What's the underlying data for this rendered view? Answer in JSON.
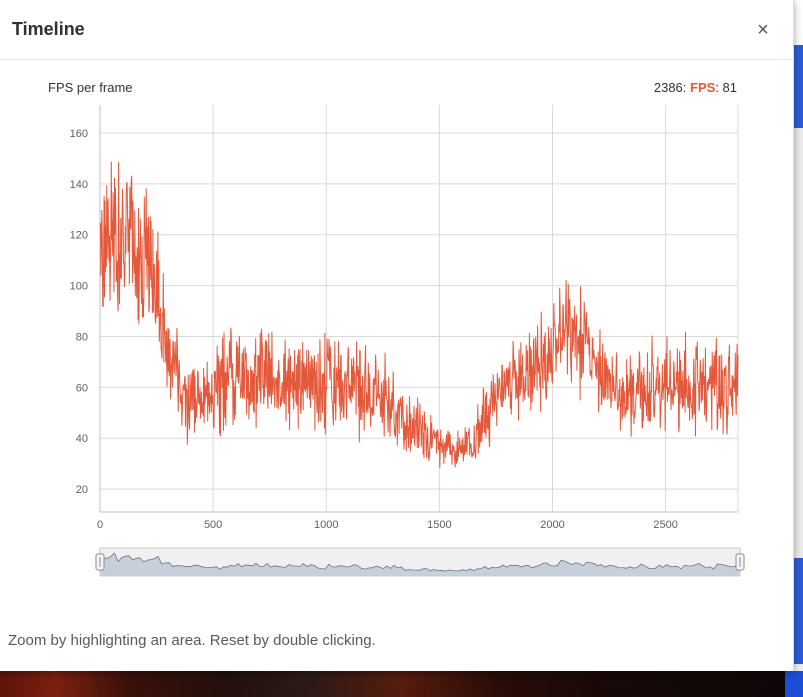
{
  "modal": {
    "title": "Timeline",
    "close_label": "×"
  },
  "chart": {
    "title_label": "FPS per frame",
    "readout": {
      "frame_label": "2386: ",
      "series_label": "FPS",
      "value_label": ": 81"
    }
  },
  "instruction": "Zoom by highlighting an area. Reset by double clicking.",
  "colors": {
    "accent": "#e4593b",
    "grid": "#d9d9d9",
    "axis_line": "#c0c0c0",
    "axis_text": "#606060",
    "navigator_track": "#f0f0f0",
    "navigator_border": "#cccccc",
    "navigator_fill": "#c3cbd8",
    "navigator_line": "#64748f",
    "handle_fill": "#f7f7f7",
    "handle_stroke": "#8a8a8a"
  },
  "chart_data": {
    "type": "line",
    "title": "FPS per frame",
    "xlabel": "",
    "ylabel": "",
    "x_range": [
      0,
      2820
    ],
    "y_range": [
      11,
      171
    ],
    "x_ticks": [
      0,
      500,
      1000,
      1500,
      2000,
      2500
    ],
    "y_ticks": [
      20,
      40,
      60,
      80,
      100,
      120,
      140,
      160
    ],
    "grid": true,
    "legend": "none",
    "readout": {
      "frame": 2386,
      "fps": 81
    },
    "series": [
      {
        "name": "FPS",
        "color": "#e4593b",
        "description": "Per-frame FPS trace, ~2820 frames; noisy band described by control points [frame, mean_fps, jitter_amplitude]",
        "control_points": [
          [
            0,
            118,
            42
          ],
          [
            60,
            122,
            38
          ],
          [
            120,
            120,
            40
          ],
          [
            200,
            108,
            38
          ],
          [
            260,
            96,
            34
          ],
          [
            310,
            70,
            22
          ],
          [
            380,
            56,
            18
          ],
          [
            460,
            55,
            18
          ],
          [
            540,
            62,
            22
          ],
          [
            620,
            65,
            22
          ],
          [
            700,
            64,
            23
          ],
          [
            800,
            63,
            22
          ],
          [
            900,
            60,
            22
          ],
          [
            1000,
            62,
            22
          ],
          [
            1100,
            60,
            22
          ],
          [
            1200,
            58,
            21
          ],
          [
            1300,
            54,
            19
          ],
          [
            1380,
            46,
            15
          ],
          [
            1450,
            40,
            12
          ],
          [
            1520,
            37,
            10
          ],
          [
            1600,
            36,
            9
          ],
          [
            1660,
            40,
            12
          ],
          [
            1720,
            52,
            16
          ],
          [
            1780,
            62,
            19
          ],
          [
            1860,
            64,
            20
          ],
          [
            1940,
            68,
            22
          ],
          [
            2020,
            76,
            26
          ],
          [
            2080,
            82,
            28
          ],
          [
            2140,
            76,
            25
          ],
          [
            2200,
            68,
            22
          ],
          [
            2260,
            60,
            20
          ],
          [
            2320,
            56,
            19
          ],
          [
            2400,
            58,
            21
          ],
          [
            2480,
            60,
            22
          ],
          [
            2560,
            62,
            22
          ],
          [
            2640,
            62,
            23
          ],
          [
            2720,
            60,
            22
          ],
          [
            2820,
            58,
            20
          ]
        ]
      }
    ],
    "navigator": {
      "enabled": true,
      "selected_range": [
        0,
        2820
      ]
    }
  }
}
